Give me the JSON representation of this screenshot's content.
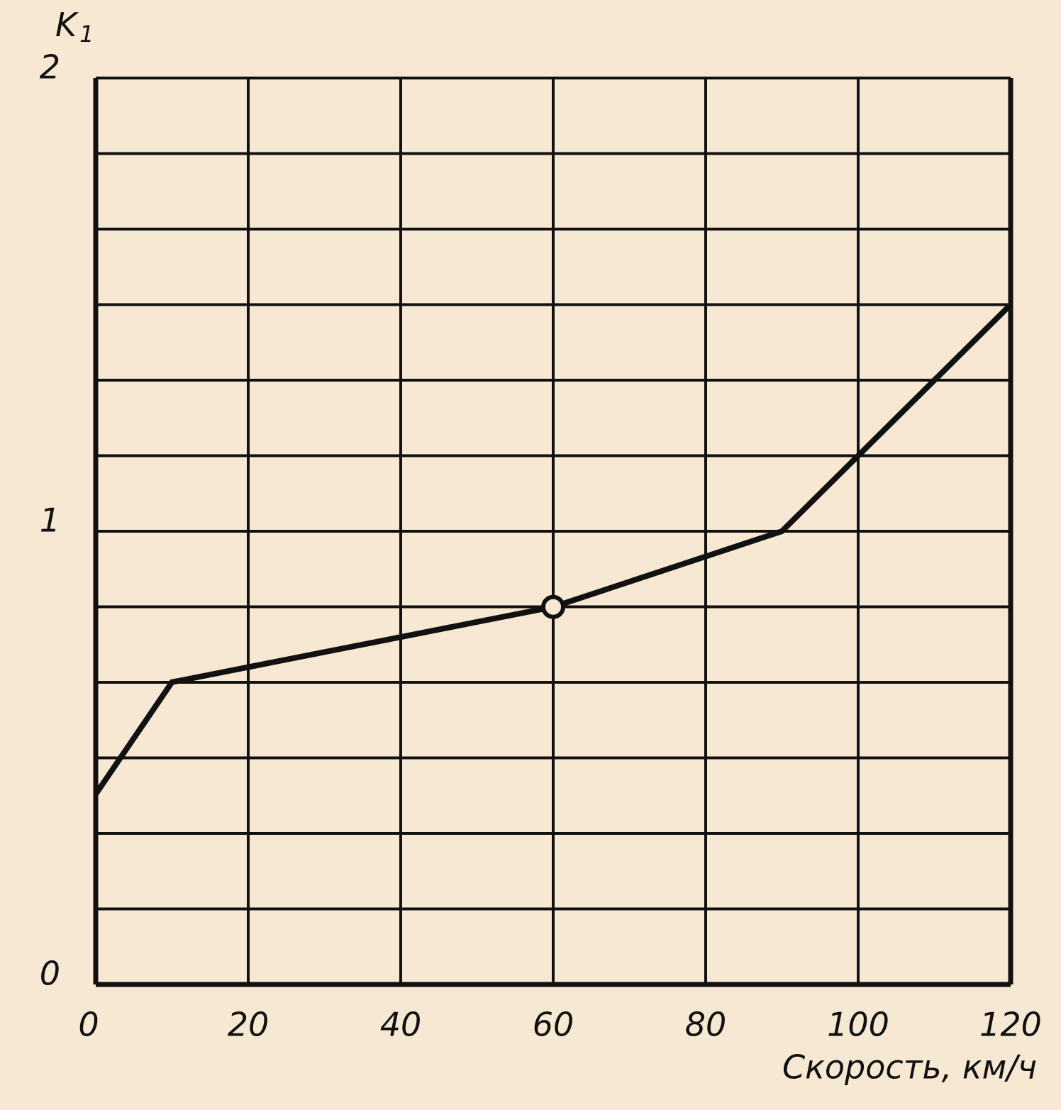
{
  "chart_data": {
    "type": "line",
    "ylabel": "K",
    "ylabel_subscript": "1",
    "xlabel": "Скорость, км/ч",
    "x": [
      0,
      10,
      60,
      90,
      120
    ],
    "series": [
      {
        "color": "#111111",
        "values": [
          0.42,
          0.667,
          0.833,
          1.0,
          1.5
        ],
        "marked_point_index": 2
      }
    ],
    "xlim": [
      0,
      120
    ],
    "xticks": [
      0,
      20,
      40,
      60,
      80,
      100,
      120
    ],
    "ylim": [
      0,
      2
    ],
    "yticks": [
      0,
      1,
      2
    ],
    "y_minor_grid": [
      0.1667,
      0.3333,
      0.5,
      0.6667,
      0.8333,
      1.1667,
      1.3333,
      1.5,
      1.6667,
      1.8333
    ],
    "grid": true
  }
}
